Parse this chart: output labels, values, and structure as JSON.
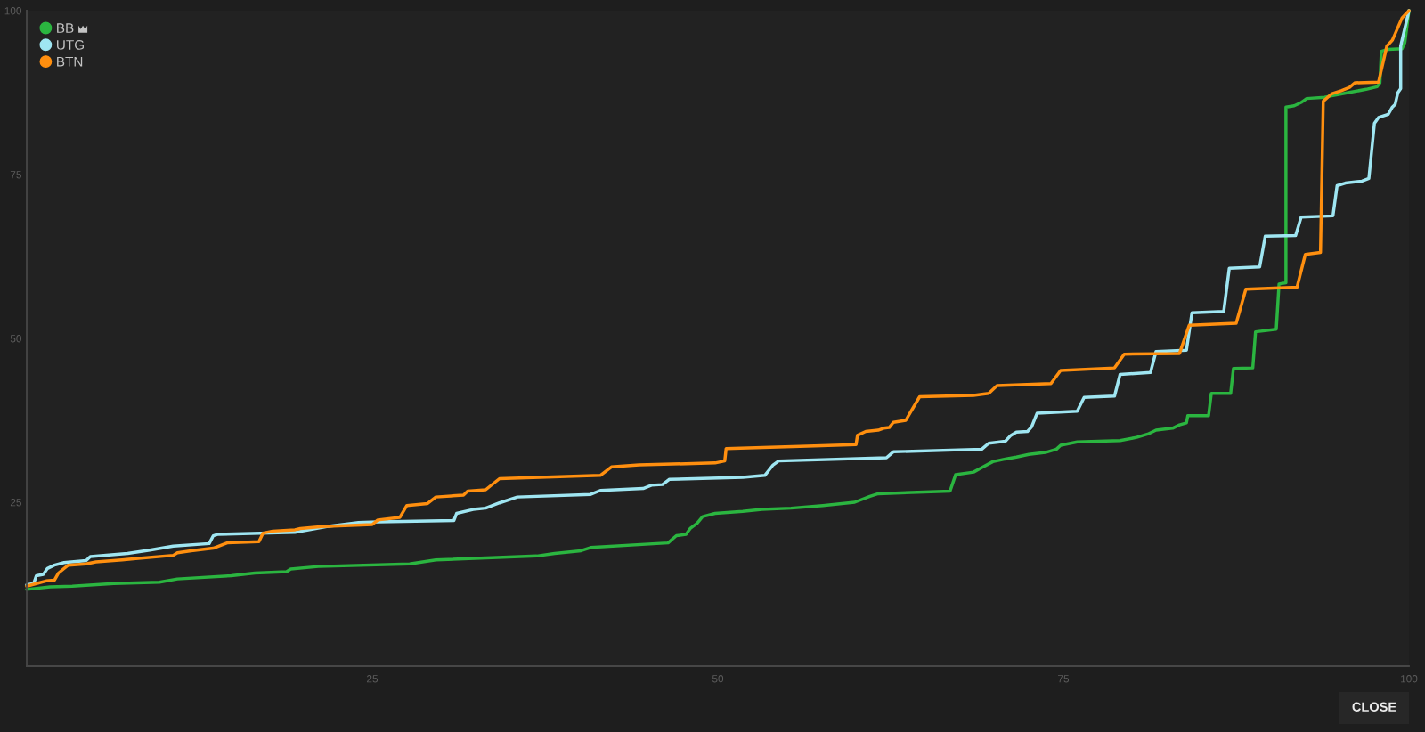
{
  "chart_data": {
    "type": "line",
    "series": [
      {
        "name": "BB",
        "color": "#2bb540",
        "x": [
          0,
          1.7,
          3.3,
          6.3,
          9.6,
          10.9,
          14.8,
          16.5,
          18.8,
          19.1,
          21.1,
          27.7,
          29.6,
          36.9,
          38.2,
          40.1,
          40.8,
          46.4,
          47.0,
          47.7,
          48.0,
          48.5,
          48.9,
          49.8,
          51.8,
          53.2,
          55.3,
          57.6,
          59.9,
          61.0,
          61.6,
          66.8,
          67.2,
          68.5,
          69.1,
          69.9,
          70.8,
          71.6,
          72.5,
          73.7,
          74.5,
          74.8,
          76.0,
          79.1,
          80.3,
          81.1,
          81.7,
          82.9,
          83.4,
          83.9,
          84.0,
          85.5,
          85.7,
          87.1,
          87.3,
          88.7,
          88.9,
          90.4,
          90.6,
          91.1,
          91.1,
          91.7,
          92.2,
          92.6,
          93.9,
          95.6,
          96.9,
          97.7,
          97.9,
          98.0,
          98.5,
          99.5,
          99.7,
          100
        ],
        "values": [
          11.7,
          12.1,
          12.2,
          12.6,
          12.8,
          13.3,
          13.8,
          14.2,
          14.4,
          14.8,
          15.2,
          15.6,
          16.2,
          16.8,
          17.2,
          17.6,
          18.1,
          18.8,
          19.9,
          20.1,
          21.0,
          21.8,
          22.8,
          23.3,
          23.6,
          23.9,
          24.1,
          24.5,
          25.0,
          25.9,
          26.3,
          26.7,
          29.2,
          29.6,
          30.3,
          31.2,
          31.6,
          31.9,
          32.3,
          32.6,
          33.1,
          33.7,
          34.2,
          34.4,
          34.9,
          35.4,
          36.0,
          36.3,
          36.8,
          37.1,
          38.2,
          38.2,
          41.6,
          41.6,
          45.4,
          45.5,
          51.0,
          51.4,
          58.3,
          58.5,
          85.3,
          85.5,
          86.0,
          86.6,
          86.8,
          87.5,
          88.0,
          88.4,
          89.0,
          93.8,
          94.1,
          94.2,
          95.1,
          100
        ]
      },
      {
        "name": "UTG",
        "color": "#9fe6f2",
        "x": [
          0,
          0.5,
          0.7,
          1.2,
          1.5,
          2.0,
          2.7,
          4.3,
          4.6,
          7.3,
          8.9,
          10.6,
          13.2,
          13.5,
          13.8,
          19.4,
          21.7,
          24.0,
          25.4,
          30.9,
          31.1,
          32.3,
          33.2,
          34.2,
          35.5,
          40.8,
          41.5,
          44.6,
          45.2,
          46.0,
          46.5,
          51.8,
          53.4,
          54.0,
          54.4,
          62.2,
          62.7,
          69.1,
          69.6,
          70.8,
          71.2,
          71.6,
          72.4,
          72.7,
          73.1,
          76.0,
          76.5,
          78.7,
          79.1,
          81.3,
          81.7,
          83.9,
          84.3,
          86.6,
          87.0,
          89.2,
          89.6,
          91.8,
          92.2,
          94.5,
          94.8,
          95.4,
          96.6,
          97.1,
          97.5,
          97.8,
          98.5,
          98.8,
          99.0,
          99.2,
          99.4,
          99.4,
          100
        ],
        "values": [
          12.4,
          12.6,
          13.8,
          14.0,
          14.9,
          15.4,
          15.8,
          16.1,
          16.7,
          17.2,
          17.7,
          18.3,
          18.7,
          19.9,
          20.1,
          20.4,
          21.3,
          21.9,
          22.0,
          22.2,
          23.3,
          23.9,
          24.1,
          24.9,
          25.8,
          26.2,
          26.8,
          27.1,
          27.6,
          27.7,
          28.5,
          28.8,
          29.1,
          30.7,
          31.3,
          31.8,
          32.7,
          33.1,
          34.0,
          34.3,
          35.2,
          35.7,
          35.8,
          36.5,
          38.6,
          38.9,
          41.0,
          41.2,
          44.5,
          44.8,
          48.0,
          48.2,
          53.9,
          54.1,
          60.7,
          60.9,
          65.6,
          65.7,
          68.5,
          68.7,
          73.3,
          73.7,
          74.0,
          74.4,
          82.8,
          83.7,
          84.2,
          85.3,
          85.7,
          87.5,
          88.1,
          94.6,
          100
        ]
      },
      {
        "name": "BTN",
        "color": "#ff8f0f",
        "x": [
          0,
          0.7,
          1.4,
          2.0,
          2.3,
          3.0,
          4.3,
          5.0,
          6.9,
          7.9,
          10.6,
          10.9,
          11.9,
          13.5,
          14.5,
          16.8,
          17.1,
          17.8,
          19.4,
          19.8,
          21.4,
          25.0,
          25.4,
          27.0,
          27.5,
          29.0,
          29.6,
          31.6,
          31.9,
          33.2,
          34.2,
          41.5,
          42.3,
          44.3,
          49.8,
          50.5,
          50.6,
          57.0,
          60.0,
          60.1,
          60.7,
          61.6,
          62.0,
          62.4,
          62.7,
          63.6,
          63.9,
          64.6,
          68.5,
          69.6,
          70.2,
          74.1,
          74.8,
          78.7,
          79.4,
          83.4,
          84.1,
          87.5,
          88.2,
          91.9,
          92.5,
          93.6,
          93.8,
          94.4,
          95.1,
          95.7,
          96.1,
          97.8,
          98.4,
          98.8,
          99.5,
          100
        ],
        "values": [
          12.2,
          12.6,
          13.0,
          13.1,
          14.2,
          15.4,
          15.6,
          15.9,
          16.2,
          16.4,
          16.9,
          17.3,
          17.6,
          18.0,
          18.8,
          19.0,
          20.3,
          20.6,
          20.8,
          21.0,
          21.3,
          21.6,
          22.3,
          22.7,
          24.5,
          24.8,
          25.8,
          26.1,
          26.7,
          26.9,
          28.6,
          29.1,
          30.4,
          30.7,
          31.0,
          31.3,
          33.2,
          33.6,
          33.8,
          35.2,
          35.8,
          36.0,
          36.3,
          36.4,
          37.2,
          37.5,
          38.6,
          41.1,
          41.3,
          41.6,
          42.8,
          43.1,
          45.1,
          45.5,
          47.6,
          47.7,
          52.0,
          52.3,
          57.5,
          57.8,
          62.8,
          63.1,
          86.2,
          87.3,
          87.8,
          88.3,
          89.0,
          89.1,
          94.6,
          95.5,
          98.9,
          100
        ]
      }
    ],
    "xlim": [
      0,
      100
    ],
    "ylim": [
      0,
      100
    ],
    "xticks": [
      25,
      50,
      75,
      100
    ],
    "yticks": [
      25,
      50,
      75,
      100
    ],
    "legend": "top left",
    "marker": "none",
    "line_style": "solid",
    "annotations": [
      "CLOSE"
    ]
  }
}
